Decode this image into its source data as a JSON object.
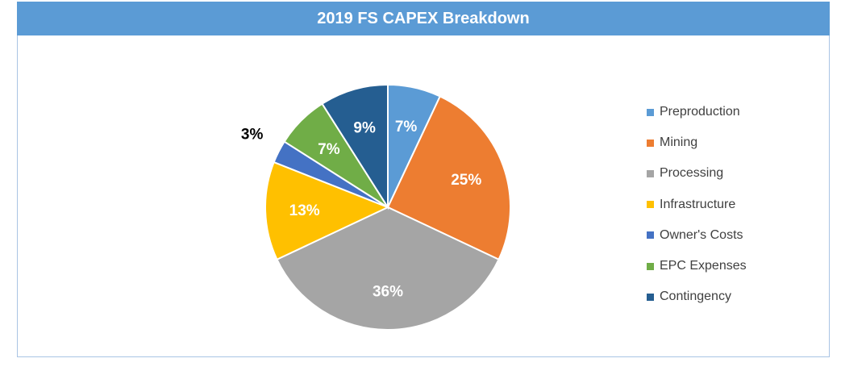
{
  "chart_data": {
    "type": "pie",
    "title": "2019 FS CAPEX Breakdown",
    "categories": [
      "Preproduction",
      "Mining",
      "Processing",
      "Infrastructure",
      "Owner's Costs",
      "EPC Expenses",
      "Contingency"
    ],
    "values": [
      7,
      25,
      36,
      13,
      3,
      7,
      9
    ],
    "labels": [
      "7%",
      "25%",
      "36%",
      "13%",
      "3%",
      "7%",
      "9%"
    ],
    "colors": [
      "#5b9bd5",
      "#ed7d31",
      "#a5a5a5",
      "#ffc000",
      "#4472c4",
      "#70ad47",
      "#255e91"
    ],
    "legend_position": "right",
    "label_colors": [
      "#ffffff",
      "#ffffff",
      "#ffffff",
      "#ffffff",
      "#000000",
      "#ffffff",
      "#ffffff"
    ]
  }
}
